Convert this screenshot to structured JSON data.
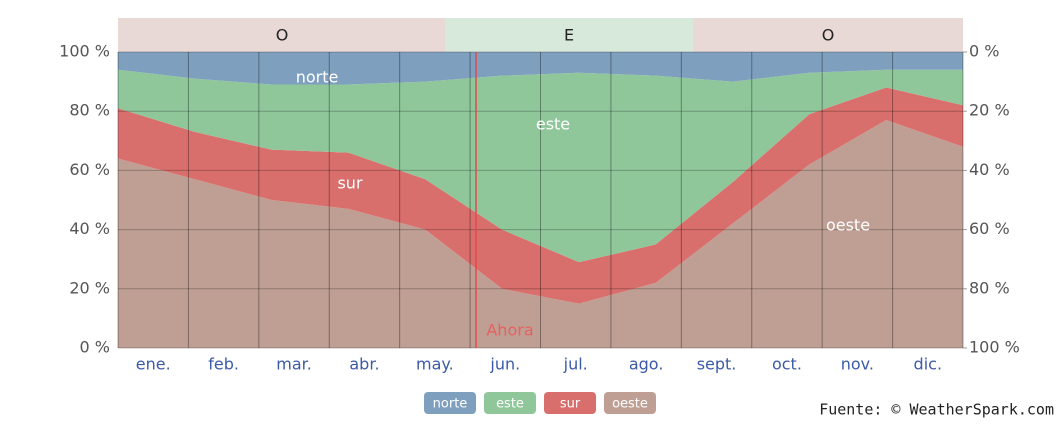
{
  "chart_data": {
    "type": "stacked_area",
    "categories": [
      "ene.",
      "feb.",
      "mar.",
      "abr.",
      "may.",
      "jun.",
      "jul.",
      "ago.",
      "sept.",
      "oct.",
      "nov.",
      "dic."
    ],
    "series": [
      {
        "name": "oeste",
        "color": "#bf9f94",
        "values": [
          64,
          57,
          50,
          47,
          40,
          20,
          15,
          22,
          42,
          62,
          77,
          68
        ]
      },
      {
        "name": "sur",
        "color": "#d96f6c",
        "values": [
          17,
          16,
          17,
          19,
          17,
          20,
          14,
          13,
          14,
          17,
          11,
          14
        ]
      },
      {
        "name": "este",
        "color": "#8fc79b",
        "values": [
          13,
          18,
          22,
          23,
          33,
          52,
          64,
          57,
          34,
          14,
          6,
          12
        ]
      },
      {
        "name": "norte",
        "color": "#7f9fbe",
        "values": [
          6,
          9,
          11,
          11,
          10,
          8,
          7,
          8,
          10,
          7,
          6,
          6
        ]
      }
    ],
    "ylim": [
      0,
      100
    ],
    "yticks": [
      {
        "value": 0,
        "label": "0 %"
      },
      {
        "value": 20,
        "label": "20 %"
      },
      {
        "value": 40,
        "label": "40 %"
      },
      {
        "value": 60,
        "label": "60 %"
      },
      {
        "value": 80,
        "label": "80 %"
      },
      {
        "value": 100,
        "label": "100 %"
      }
    ],
    "y2lim": [
      100,
      0
    ],
    "y2ticks": [
      {
        "value": 100,
        "label": "100 %"
      },
      {
        "value": 80,
        "label": "80 %"
      },
      {
        "value": 60,
        "label": "60 %"
      },
      {
        "value": 40,
        "label": "40 %"
      },
      {
        "value": 20,
        "label": "20 %"
      },
      {
        "value": 0,
        "label": "0 %"
      }
    ],
    "dominant": [
      "O",
      "E",
      "O"
    ],
    "annotation": "Ahora",
    "source": "Fuente: © WeatherSpark.com",
    "grid": true
  }
}
